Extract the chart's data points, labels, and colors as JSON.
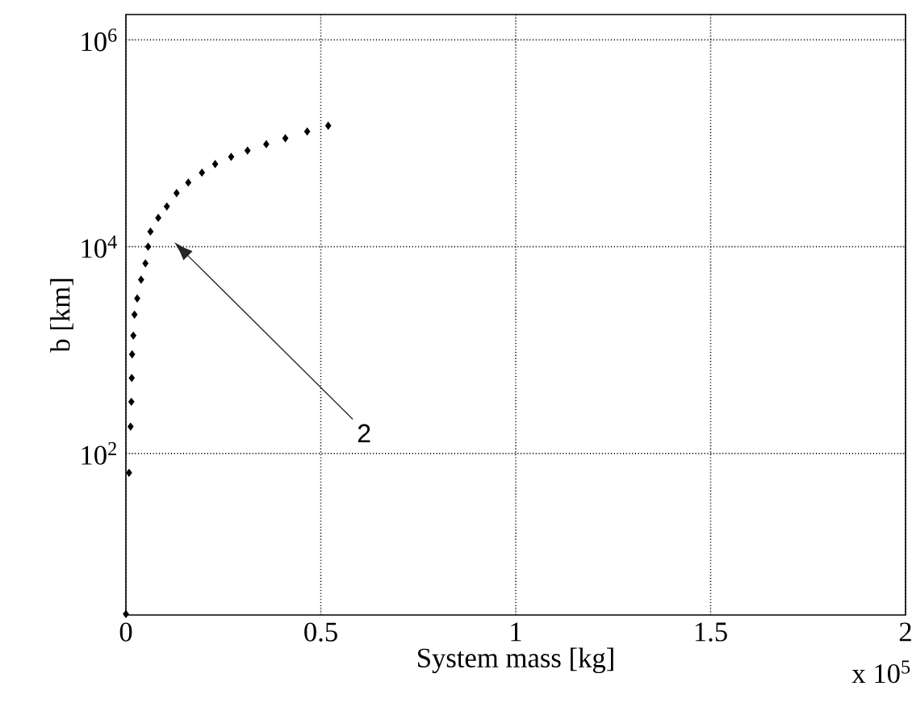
{
  "chart_data": {
    "type": "scatter",
    "xlabel": "System mass [kg]",
    "ylabel": "b [km]",
    "log": "y",
    "grid": true,
    "marker": "diamond",
    "xlim": [
      0,
      2
    ],
    "ylim": [
      2.74,
      1760000
    ],
    "xticks": [
      0,
      0.5,
      1,
      1.5,
      2
    ],
    "yticks": [
      {
        "value": 100,
        "label": "10$^{2}$"
      },
      {
        "value": 10000,
        "label": "10$^{4}$"
      },
      {
        "value": 1000000,
        "label": "10$^{6}$"
      }
    ],
    "series": [
      {
        "color": "#000000",
        "x": [
          0,
          0.008,
          0.012,
          0.014,
          0.015,
          0.016,
          0.019,
          0.022,
          0.029,
          0.039,
          0.05,
          0.057,
          0.063,
          0.083,
          0.105,
          0.13,
          0.16,
          0.195,
          0.229,
          0.27,
          0.312,
          0.36,
          0.409,
          0.465,
          0.519
        ],
        "values": [
          2.8,
          65,
          182,
          316,
          537,
          910,
          1380,
          2200,
          3160,
          4800,
          6900,
          10000,
          14000,
          19000,
          24500,
          33000,
          41700,
          52000,
          63000,
          74000,
          85000,
          98000,
          112000,
          130000,
          148000
        ]
      }
    ],
    "annotations": [
      "x 10$^{5}$",
      "2"
    ]
  }
}
